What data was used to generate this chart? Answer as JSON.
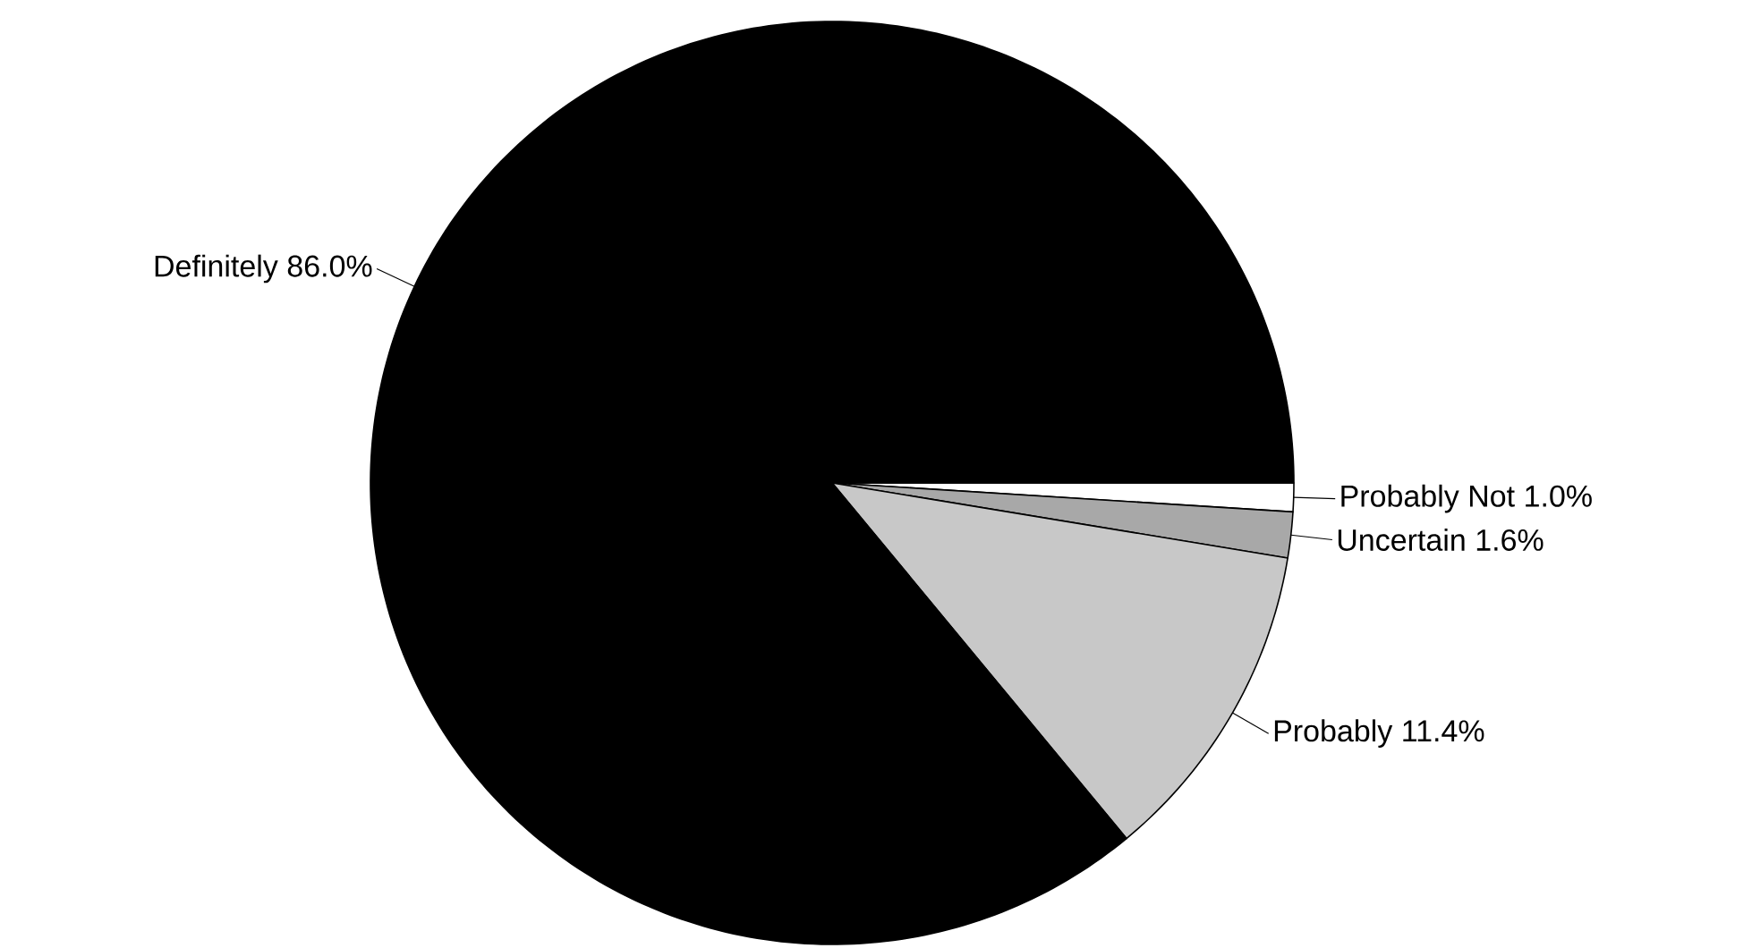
{
  "chart_data": {
    "type": "pie",
    "categories": [
      "Probably Not",
      "Uncertain",
      "Probably",
      "Definitely"
    ],
    "values": [
      1.0,
      1.6,
      11.4,
      86.0
    ],
    "value_labels": [
      "1.0%",
      "1.6%",
      "11.4%",
      "86.0%"
    ],
    "colors": [
      "#ffffff",
      "#a8a8a8",
      "#c8c8c8",
      "#000000"
    ]
  }
}
